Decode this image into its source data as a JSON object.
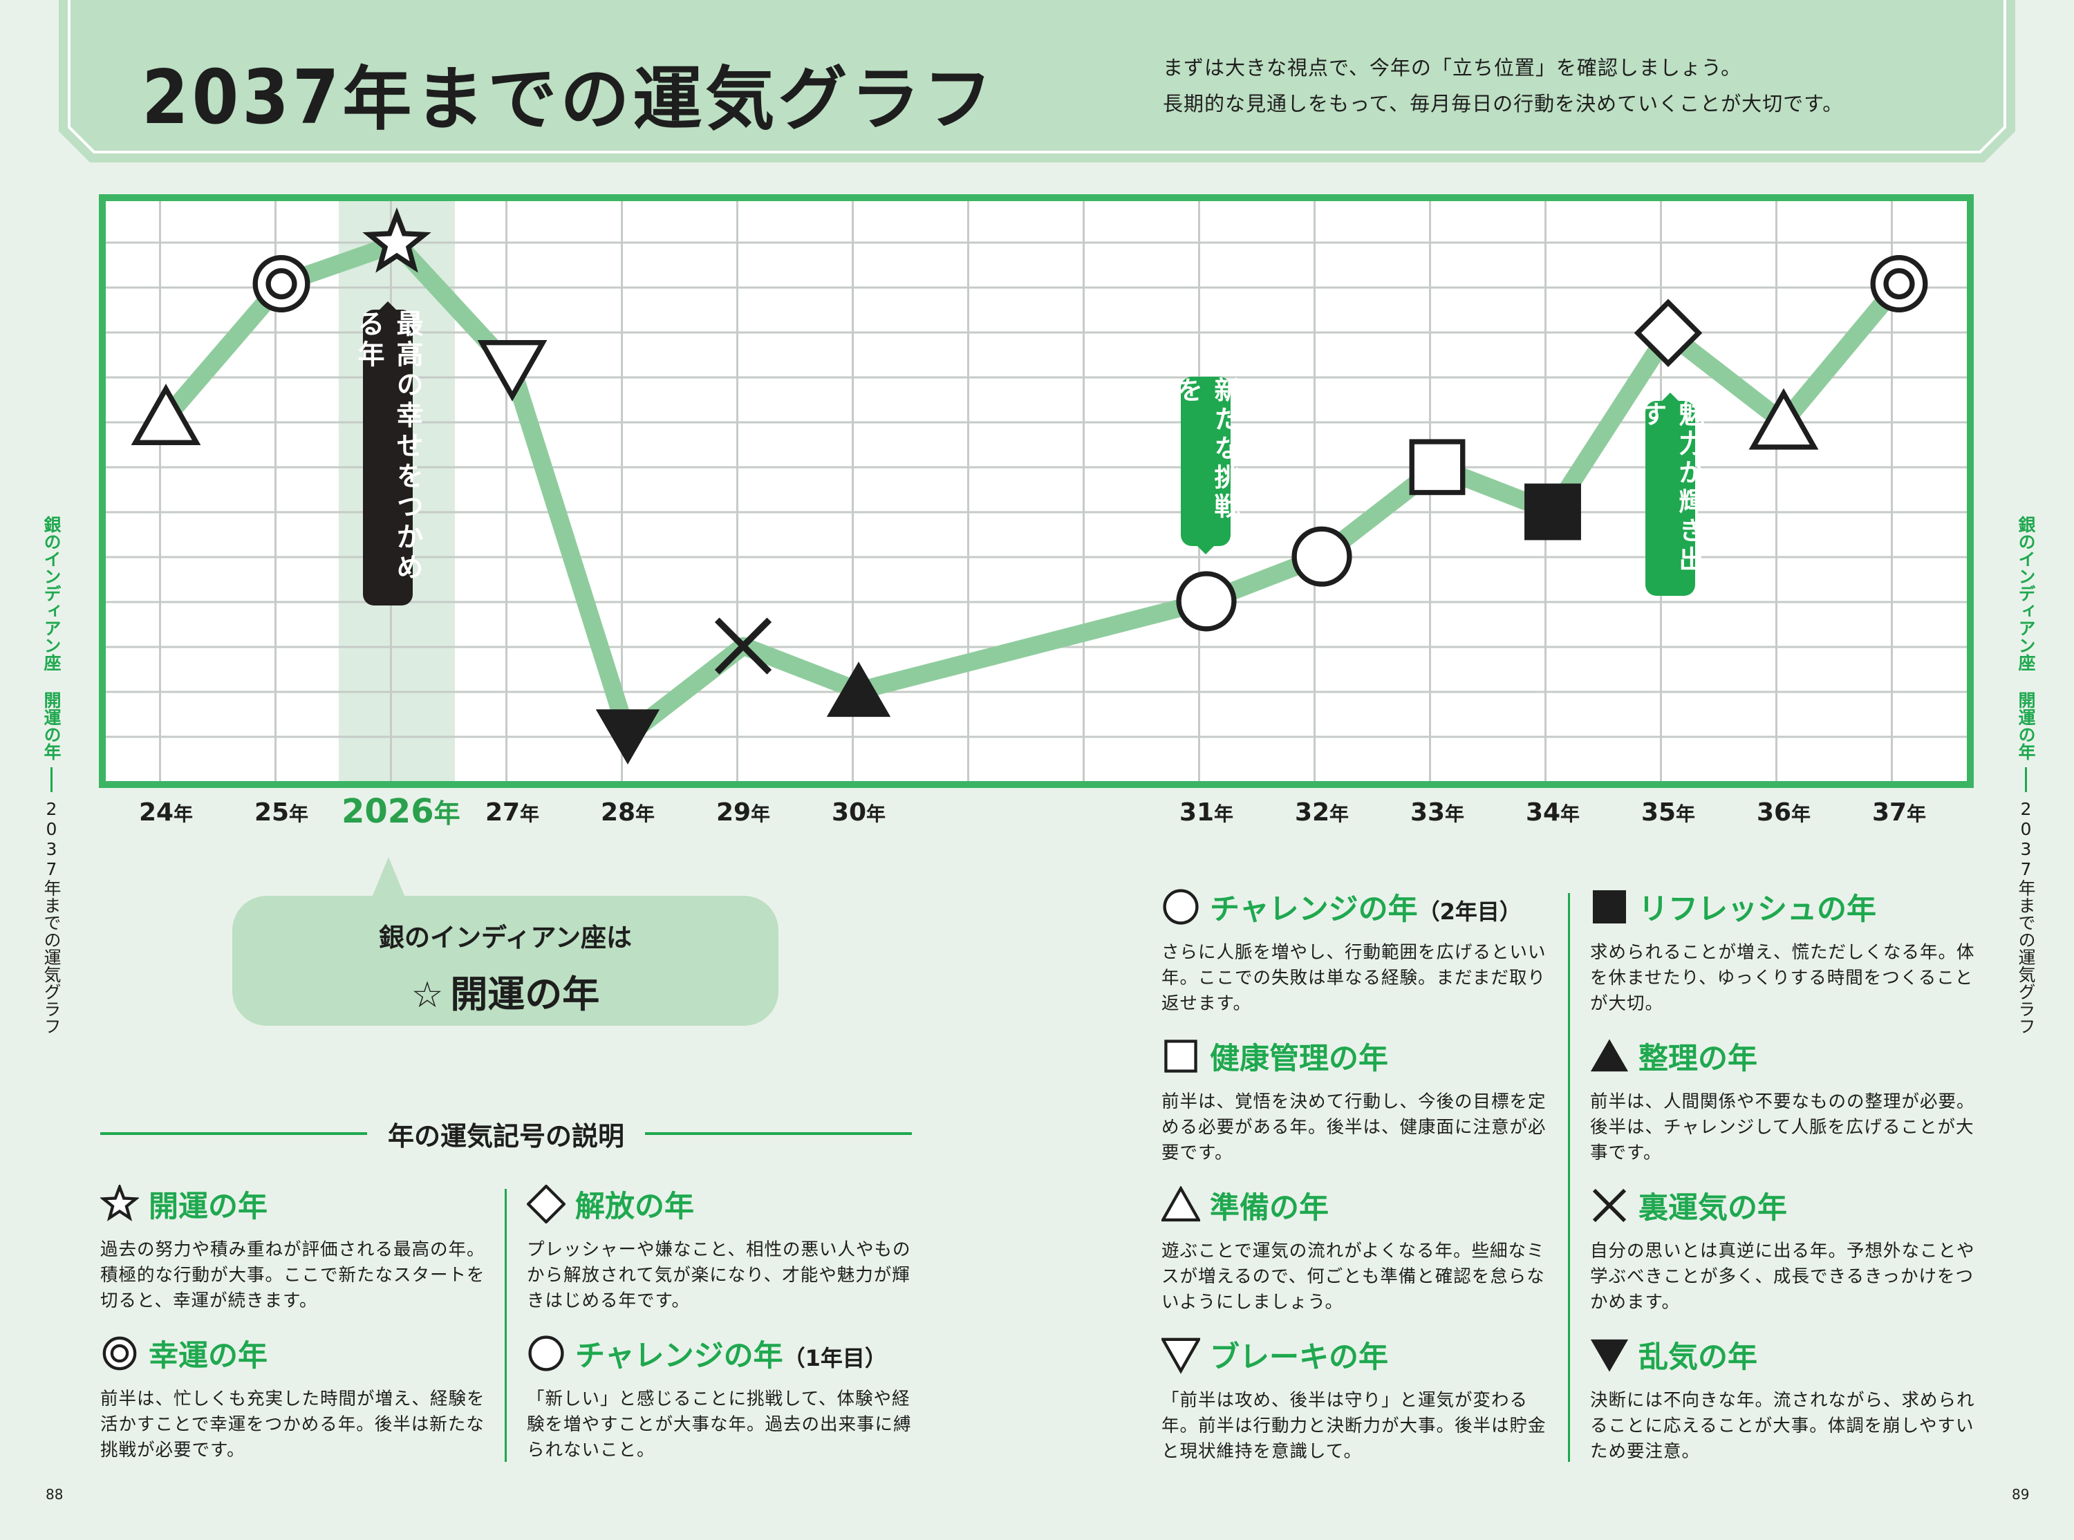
{
  "header": {
    "title_year": "2037",
    "title_rest": "年までの運気グラフ",
    "intro_lines": [
      "まずは大きな視点で、今年の「立ち位置」を確認しましょう。",
      "長期的な見通しをもって、毎月毎日の行動を決めていくことが大切です。"
    ]
  },
  "colors": {
    "accent": "#1fa84f",
    "line": "#8fcc9d",
    "header_bg": "#bddfc3",
    "page_bg": "#e9f2ea",
    "dark": "#231f1e"
  },
  "chart_data": {
    "type": "line",
    "title": "2037年までの運気グラフ",
    "highlight_year": "2026",
    "y_scale": "relative fortune level, 0 (low) to 12 (high), read from gridlines",
    "points": [
      {
        "year": 2024,
        "num": "24",
        "unit": "年",
        "value": 8.1,
        "symbol": "triangle"
      },
      {
        "year": 2025,
        "num": "25",
        "unit": "年",
        "value": 11.1,
        "symbol": "double-circle"
      },
      {
        "year": 2026,
        "num": "2026",
        "unit": "年",
        "value": 12.0,
        "symbol": "star"
      },
      {
        "year": 2027,
        "num": "27",
        "unit": "年",
        "value": 9.2,
        "symbol": "down-triangle"
      },
      {
        "year": 2028,
        "num": "28",
        "unit": "年",
        "value": 1.0,
        "symbol": "filled-down-triangle"
      },
      {
        "year": 2029,
        "num": "29",
        "unit": "年",
        "value": 3.0,
        "symbol": "cross"
      },
      {
        "year": 2030,
        "num": "30",
        "unit": "年",
        "value": 2.0,
        "symbol": "filled-triangle"
      },
      {
        "year": 2031,
        "num": "31",
        "unit": "年",
        "value": 4.0,
        "symbol": "circle"
      },
      {
        "year": 2032,
        "num": "32",
        "unit": "年",
        "value": 5.0,
        "symbol": "circle"
      },
      {
        "year": 2033,
        "num": "33",
        "unit": "年",
        "value": 7.0,
        "symbol": "square"
      },
      {
        "year": 2034,
        "num": "34",
        "unit": "年",
        "value": 6.0,
        "symbol": "filled-square"
      },
      {
        "year": 2035,
        "num": "35",
        "unit": "年",
        "value": 10.0,
        "symbol": "diamond"
      },
      {
        "year": 2036,
        "num": "36",
        "unit": "年",
        "value": 8.0,
        "symbol": "triangle"
      },
      {
        "year": 2037,
        "num": "37",
        "unit": "年",
        "value": 11.1,
        "symbol": "double-circle"
      }
    ],
    "annotations": [
      {
        "year": 2026,
        "text": "最高の幸せをつかめる年"
      },
      {
        "year": 2031,
        "text": "新たな挑戦を"
      },
      {
        "year": 2035,
        "text": "魅力が輝き出す"
      }
    ]
  },
  "badge": {
    "line1": "銀のインディアン座は",
    "star": "☆",
    "line2": "開運の年"
  },
  "side": {
    "sign": "銀のインディアン座",
    "theme": "開運の年",
    "title": "2037年までの運気グラフ"
  },
  "legend": {
    "title": "年の運気記号の説明",
    "items": [
      {
        "symbol": "star",
        "name": "開運の年",
        "desc": "過去の努力や積み重ねが評価される最高の年。積極的な行動が大事。ここで新たなスタートを切ると、幸運が続きます。"
      },
      {
        "symbol": "double-circle",
        "name": "幸運の年",
        "desc": "前半は、忙しくも充実した時間が増え、経験を活かすことで幸運をつかめる年。後半は新たな挑戦が必要です。"
      },
      {
        "symbol": "diamond",
        "name": "解放の年",
        "desc": "プレッシャーや嫌なこと、相性の悪い人やものから解放されて気が楽になり、才能や魅力が輝きはじめる年です。"
      },
      {
        "symbol": "circle",
        "name": "チャレンジの年",
        "note": "（1年目）",
        "desc": "「新しい」と感じることに挑戦して、体験や経験を増やすことが大事な年。過去の出来事に縛られないこと。"
      },
      {
        "symbol": "circle",
        "name": "チャレンジの年",
        "note": "（2年目）",
        "desc": "さらに人脈を増やし、行動範囲を広げるといい年。ここでの失敗は単なる経験。まだまだ取り返せます。"
      },
      {
        "symbol": "square",
        "name": "健康管理の年",
        "desc": "前半は、覚悟を決めて行動し、今後の目標を定める必要がある年。後半は、健康面に注意が必要です。"
      },
      {
        "symbol": "triangle",
        "name": "準備の年",
        "desc": "遊ぶことで運気の流れがよくなる年。些細なミスが増えるので、何ごとも準備と確認を怠らないようにしましょう。"
      },
      {
        "symbol": "down-triangle",
        "name": "ブレーキの年",
        "desc": "「前半は攻め、後半は守り」と運気が変わる年。前半は行動力と決断力が大事。後半は貯金と現状維持を意識して。"
      },
      {
        "symbol": "filled-square",
        "name": "リフレッシュの年",
        "desc": "求められることが増え、慌ただしくなる年。体を休ませたり、ゆっくりする時間をつくることが大切。"
      },
      {
        "symbol": "filled-triangle",
        "name": "整理の年",
        "desc": "前半は、人間関係や不要なものの整理が必要。後半は、チャレンジして人脈を広げることが大事です。"
      },
      {
        "symbol": "cross",
        "name": "裏運気の年",
        "desc": "自分の思いとは真逆に出る年。予想外なことや学ぶべきことが多く、成長できるきっかけをつかめます。"
      },
      {
        "symbol": "filled-down-triangle",
        "name": "乱気の年",
        "desc": "決断には不向きな年。流されながら、求められることに応えることが大事。体調を崩しやすいため要注意。"
      }
    ]
  },
  "page_numbers": {
    "left": "88",
    "right": "89"
  }
}
